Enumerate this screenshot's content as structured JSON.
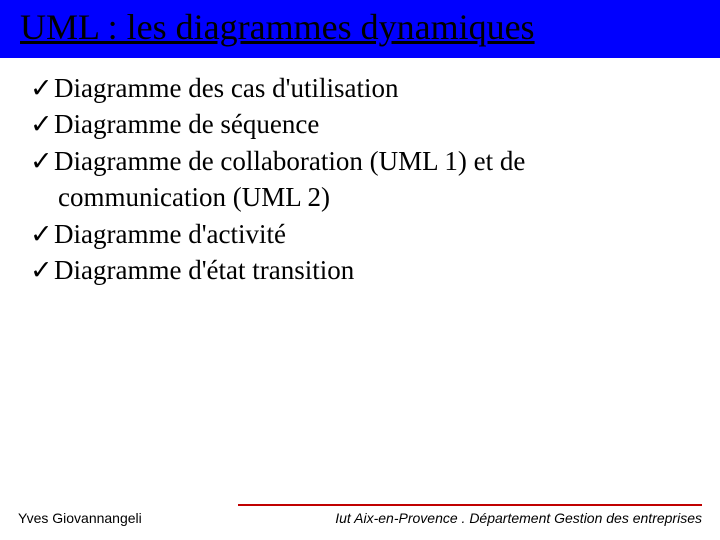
{
  "slide": {
    "title": "UML : les diagrammes dynamiques",
    "title_bar_color": "#0000ff",
    "title_text_color": "#000000",
    "title_fontsize": 36,
    "title_underline": true,
    "bullets": {
      "marker": "✓",
      "items": [
        "Diagramme des cas d'utilisation",
        "Diagramme de séquence",
        "Diagramme de collaboration (UML 1) et de communication (UML 2)",
        "Diagramme d'activité",
        "Diagramme d'état transition"
      ],
      "fontsize": 27,
      "text_color": "#000000"
    },
    "footer": {
      "rule_color": "#c00000",
      "left": "Yves Giovannangeli",
      "right": "Iut Aix-en-Provence . Département Gestion des entreprises",
      "fontsize": 14
    },
    "background_color": "#ffffff"
  }
}
